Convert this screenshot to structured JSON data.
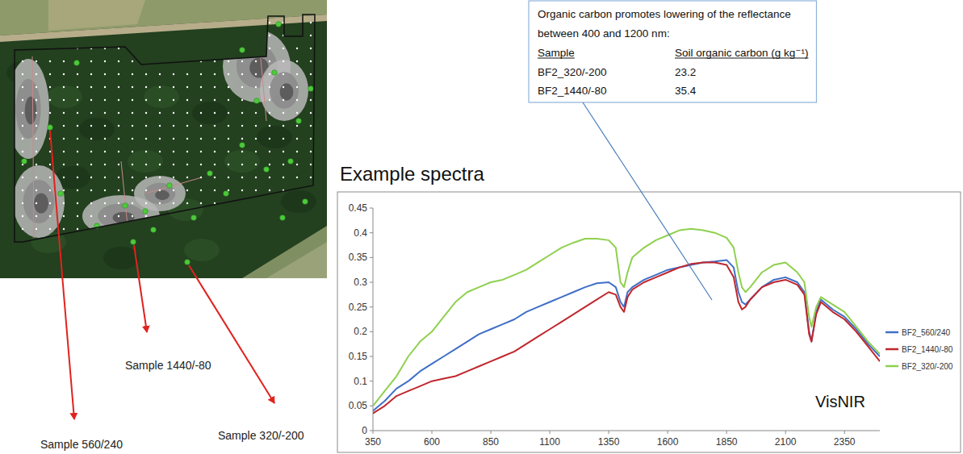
{
  "map": {
    "labels": [
      "Sample 560/240",
      "Sample 1440/-80",
      "Sample 320/-200"
    ]
  },
  "callout": {
    "lines": [
      "Organic carbon promotes lowering of the reflectance",
      "between 400 and 1200 nm:"
    ],
    "header": [
      "Sample",
      "Soil organic carbon (g kg⁻¹)"
    ],
    "rows": [
      [
        "BF2_320/-200",
        23.2
      ],
      [
        "BF2_1440/-80",
        35.4
      ]
    ]
  },
  "chart_data": {
    "type": "line",
    "title": "Example spectra",
    "annotations": [
      "VisNIR"
    ],
    "x": [
      350,
      400,
      450,
      500,
      550,
      600,
      650,
      700,
      750,
      800,
      850,
      900,
      950,
      1000,
      1050,
      1100,
      1150,
      1200,
      1250,
      1300,
      1350,
      1380,
      1400,
      1415,
      1430,
      1450,
      1500,
      1550,
      1600,
      1650,
      1700,
      1750,
      1800,
      1850,
      1880,
      1900,
      1915,
      1930,
      1950,
      2000,
      2050,
      2100,
      2150,
      2180,
      2200,
      2210,
      2230,
      2250,
      2300,
      2350,
      2400,
      2450,
      2500
    ],
    "xlim": [
      350,
      2500
    ],
    "xticks": [
      350,
      600,
      850,
      1100,
      1350,
      1600,
      1850,
      2100,
      2350
    ],
    "ylim": [
      0,
      0.45
    ],
    "yticks": [
      0,
      0.05,
      0.1,
      0.15,
      0.2,
      0.25,
      0.3,
      0.35,
      0.4,
      0.45
    ],
    "grid": false,
    "legend": "right",
    "series": [
      {
        "name": "BF2_560/240",
        "color": "#3f6fc6",
        "values": [
          0.04,
          0.06,
          0.085,
          0.1,
          0.12,
          0.135,
          0.15,
          0.165,
          0.18,
          0.195,
          0.205,
          0.215,
          0.225,
          0.24,
          0.25,
          0.26,
          0.27,
          0.28,
          0.29,
          0.298,
          0.3,
          0.29,
          0.26,
          0.25,
          0.28,
          0.29,
          0.305,
          0.315,
          0.325,
          0.33,
          0.335,
          0.34,
          0.342,
          0.345,
          0.33,
          0.28,
          0.26,
          0.255,
          0.265,
          0.29,
          0.305,
          0.31,
          0.3,
          0.28,
          0.2,
          0.18,
          0.24,
          0.265,
          0.245,
          0.23,
          0.205,
          0.175,
          0.15
        ]
      },
      {
        "name": "BF2_1440/-80",
        "color": "#c0272d",
        "values": [
          0.035,
          0.05,
          0.07,
          0.08,
          0.09,
          0.1,
          0.105,
          0.11,
          0.12,
          0.13,
          0.14,
          0.15,
          0.16,
          0.175,
          0.19,
          0.205,
          0.22,
          0.235,
          0.25,
          0.265,
          0.28,
          0.275,
          0.25,
          0.24,
          0.27,
          0.285,
          0.3,
          0.31,
          0.32,
          0.33,
          0.337,
          0.34,
          0.34,
          0.335,
          0.31,
          0.26,
          0.245,
          0.25,
          0.265,
          0.29,
          0.3,
          0.305,
          0.295,
          0.275,
          0.195,
          0.18,
          0.235,
          0.26,
          0.24,
          0.225,
          0.2,
          0.17,
          0.14
        ]
      },
      {
        "name": "BF2_320/-200",
        "color": "#8fd04e",
        "values": [
          0.05,
          0.08,
          0.11,
          0.15,
          0.18,
          0.2,
          0.23,
          0.26,
          0.28,
          0.29,
          0.3,
          0.305,
          0.315,
          0.325,
          0.34,
          0.355,
          0.37,
          0.38,
          0.388,
          0.388,
          0.385,
          0.37,
          0.3,
          0.29,
          0.32,
          0.35,
          0.37,
          0.385,
          0.395,
          0.405,
          0.408,
          0.405,
          0.4,
          0.39,
          0.37,
          0.32,
          0.29,
          0.28,
          0.29,
          0.32,
          0.335,
          0.34,
          0.32,
          0.3,
          0.23,
          0.21,
          0.25,
          0.27,
          0.255,
          0.24,
          0.21,
          0.18,
          0.155
        ]
      }
    ]
  }
}
